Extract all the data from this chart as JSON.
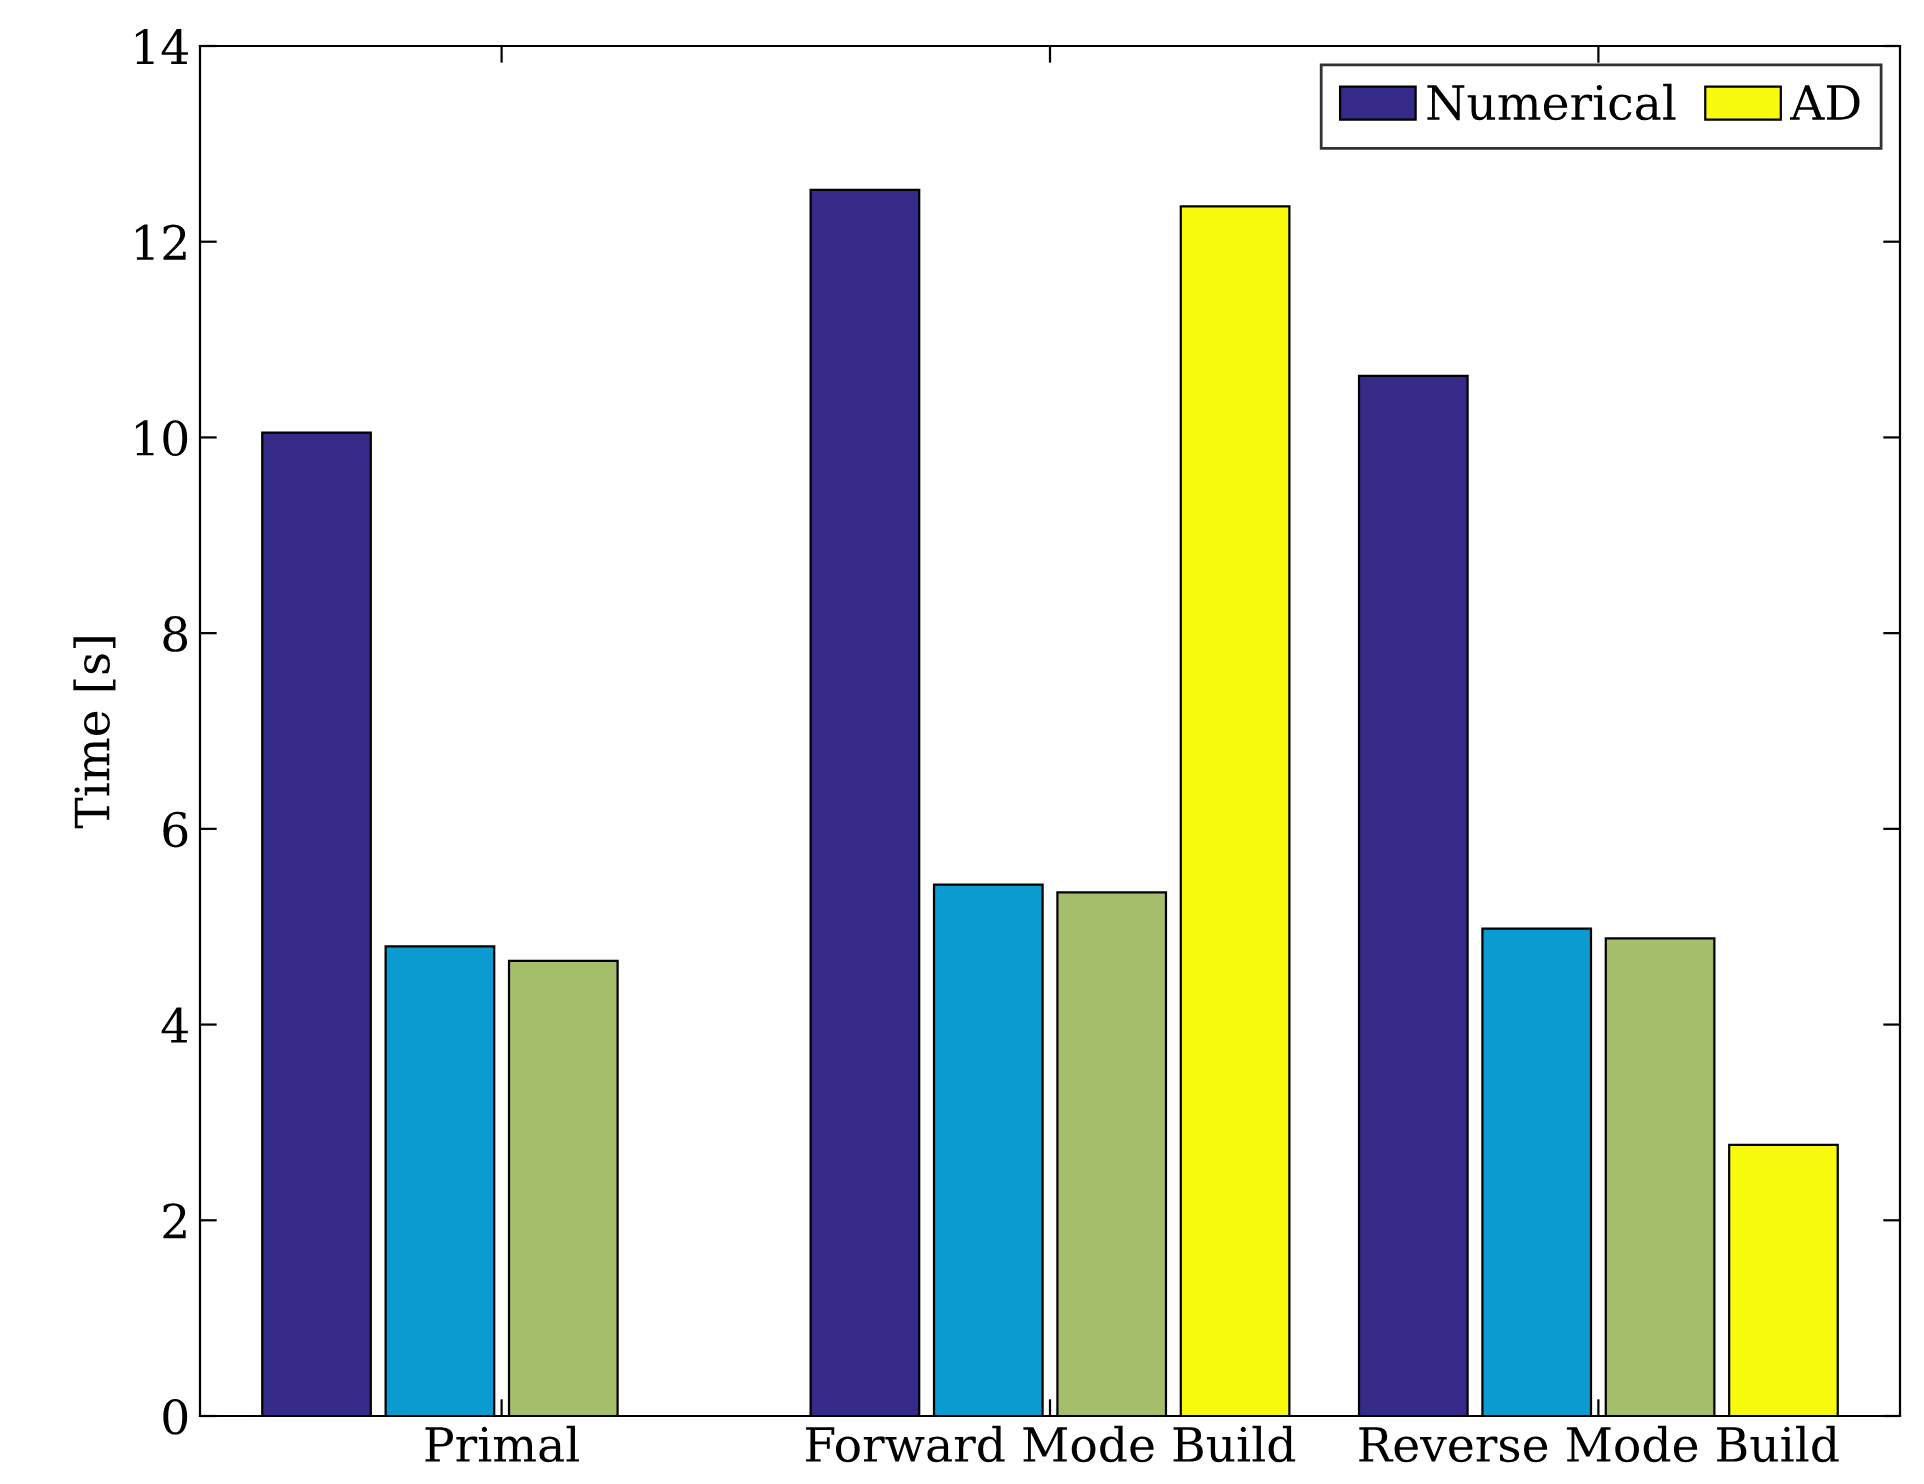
{
  "chart_data": {
    "type": "bar",
    "ylabel": "Time [s]",
    "categories": [
      "Primal",
      "Forward Mode Build",
      "Reverse Mode Build"
    ],
    "series": [
      {
        "name": "Numerical",
        "color": "#352a87",
        "values": [
          10.05,
          12.53,
          10.63
        ]
      },
      {
        "color": "#0a9bd0",
        "values": [
          4.8,
          5.43,
          4.98
        ]
      },
      {
        "color": "#a5be6b",
        "values": [
          4.65,
          5.35,
          4.88
        ]
      },
      {
        "name": "AD",
        "color": "#f8fa0d",
        "values": [
          null,
          12.36,
          2.77
        ]
      }
    ],
    "ylim": [
      0,
      14
    ],
    "yticks": [
      0,
      2,
      4,
      6,
      8,
      10,
      12,
      14
    ],
    "grid": false,
    "legend": "top right"
  }
}
